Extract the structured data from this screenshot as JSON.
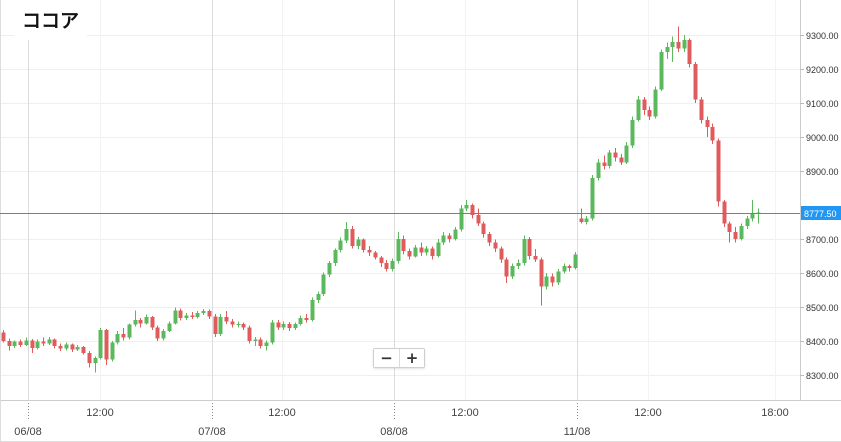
{
  "chart_data": {
    "type": "candlestick",
    "title": "ココア",
    "y_ticks": [
      "9300.00",
      "9200.00",
      "9100.00",
      "9000.00",
      "8900.00",
      "8700.00",
      "8600.00",
      "8500.00",
      "8400.00",
      "8300.00"
    ],
    "ylim": [
      8226.5,
      9403.0
    ],
    "x_time_labels": [
      "12:00",
      "12:00",
      "12:00",
      "12:00",
      "18:00"
    ],
    "x_date_labels": [
      "06/08",
      "07/08",
      "08/08",
      "11/08"
    ],
    "last_price": 8777.5,
    "last_price_label": "8777.50",
    "grid": true,
    "colors": {
      "up": "#5cb85c",
      "down": "#e05c5c",
      "last_price": "#2196f3"
    },
    "ohlc": [
      [
        8425,
        8432,
        8395,
        8400
      ],
      [
        8400,
        8408,
        8372,
        8385
      ],
      [
        8385,
        8402,
        8380,
        8398
      ],
      [
        8398,
        8405,
        8382,
        8388
      ],
      [
        8388,
        8410,
        8385,
        8402
      ],
      [
        8402,
        8406,
        8365,
        8380
      ],
      [
        8380,
        8405,
        8375,
        8398
      ],
      [
        8398,
        8410,
        8385,
        8392
      ],
      [
        8392,
        8412,
        8388,
        8405
      ],
      [
        8405,
        8408,
        8378,
        8385
      ],
      [
        8385,
        8392,
        8370,
        8378
      ],
      [
        8378,
        8395,
        8372,
        8390
      ],
      [
        8390,
        8393,
        8368,
        8375
      ],
      [
        8375,
        8388,
        8370,
        8382
      ],
      [
        8382,
        8386,
        8360,
        8365
      ],
      [
        8365,
        8370,
        8322,
        8335
      ],
      [
        8335,
        8355,
        8308,
        8350
      ],
      [
        8350,
        8438,
        8345,
        8432
      ],
      [
        8432,
        8436,
        8330,
        8345
      ],
      [
        8345,
        8400,
        8340,
        8395
      ],
      [
        8395,
        8430,
        8390,
        8420
      ],
      [
        8420,
        8438,
        8402,
        8410
      ],
      [
        8410,
        8452,
        8405,
        8448
      ],
      [
        8448,
        8490,
        8442,
        8462
      ],
      [
        8462,
        8468,
        8440,
        8452
      ],
      [
        8452,
        8478,
        8448,
        8470
      ],
      [
        8470,
        8474,
        8432,
        8440
      ],
      [
        8440,
        8445,
        8400,
        8408
      ],
      [
        8408,
        8436,
        8402,
        8430
      ],
      [
        8430,
        8458,
        8426,
        8452
      ],
      [
        8452,
        8498,
        8448,
        8490
      ],
      [
        8490,
        8495,
        8460,
        8468
      ],
      [
        8468,
        8482,
        8462,
        8475
      ],
      [
        8475,
        8485,
        8465,
        8470
      ],
      [
        8470,
        8488,
        8466,
        8482
      ],
      [
        8482,
        8494,
        8476,
        8488
      ],
      [
        8488,
        8492,
        8465,
        8472
      ],
      [
        8472,
        8480,
        8412,
        8420
      ],
      [
        8420,
        8480,
        8415,
        8470
      ],
      [
        8470,
        8488,
        8450,
        8458
      ],
      [
        8458,
        8465,
        8440,
        8448
      ],
      [
        8448,
        8458,
        8440,
        8450
      ],
      [
        8450,
        8455,
        8432,
        8440
      ],
      [
        8440,
        8445,
        8392,
        8400
      ],
      [
        8400,
        8412,
        8385,
        8405
      ],
      [
        8405,
        8410,
        8378,
        8385
      ],
      [
        8385,
        8402,
        8372,
        8395
      ],
      [
        8395,
        8462,
        8390,
        8455
      ],
      [
        8455,
        8462,
        8432,
        8440
      ],
      [
        8440,
        8458,
        8432,
        8450
      ],
      [
        8450,
        8456,
        8430,
        8438
      ],
      [
        8438,
        8455,
        8432,
        8450
      ],
      [
        8450,
        8475,
        8445,
        8468
      ],
      [
        8468,
        8480,
        8455,
        8462
      ],
      [
        8462,
        8528,
        8458,
        8520
      ],
      [
        8520,
        8545,
        8512,
        8538
      ],
      [
        8538,
        8602,
        8532,
        8595
      ],
      [
        8595,
        8636,
        8588,
        8630
      ],
      [
        8630,
        8672,
        8620,
        8668
      ],
      [
        8668,
        8705,
        8660,
        8695
      ],
      [
        8695,
        8750,
        8688,
        8730
      ],
      [
        8730,
        8738,
        8672,
        8680
      ],
      [
        8680,
        8706,
        8670,
        8698
      ],
      [
        8698,
        8702,
        8660,
        8668
      ],
      [
        8668,
        8680,
        8650,
        8660
      ],
      [
        8660,
        8665,
        8640,
        8645
      ],
      [
        8645,
        8650,
        8618,
        8630
      ],
      [
        8630,
        8638,
        8605,
        8612
      ],
      [
        8612,
        8642,
        8605,
        8635
      ],
      [
        8635,
        8720,
        8628,
        8700
      ],
      [
        8700,
        8710,
        8655,
        8665
      ],
      [
        8665,
        8672,
        8640,
        8648
      ],
      [
        8648,
        8682,
        8645,
        8675
      ],
      [
        8675,
        8690,
        8650,
        8660
      ],
      [
        8660,
        8680,
        8652,
        8672
      ],
      [
        8672,
        8678,
        8640,
        8650
      ],
      [
        8650,
        8700,
        8645,
        8690
      ],
      [
        8690,
        8720,
        8682,
        8710
      ],
      [
        8710,
        8718,
        8690,
        8700
      ],
      [
        8700,
        8735,
        8695,
        8728
      ],
      [
        8728,
        8800,
        8722,
        8790
      ],
      [
        8790,
        8815,
        8782,
        8800
      ],
      [
        8800,
        8805,
        8760,
        8770
      ],
      [
        8770,
        8790,
        8738,
        8745
      ],
      [
        8745,
        8752,
        8705,
        8715
      ],
      [
        8715,
        8720,
        8680,
        8690
      ],
      [
        8690,
        8698,
        8662,
        8672
      ],
      [
        8672,
        8678,
        8630,
        8640
      ],
      [
        8640,
        8645,
        8570,
        8590
      ],
      [
        8590,
        8628,
        8582,
        8620
      ],
      [
        8620,
        8640,
        8612,
        8630
      ],
      [
        8630,
        8710,
        8622,
        8700
      ],
      [
        8700,
        8706,
        8640,
        8650
      ],
      [
        8650,
        8670,
        8632,
        8640
      ],
      [
        8640,
        8645,
        8505,
        8560
      ],
      [
        8560,
        8600,
        8552,
        8590
      ],
      [
        8590,
        8598,
        8560,
        8572
      ],
      [
        8572,
        8612,
        8565,
        8605
      ],
      [
        8605,
        8628,
        8598,
        8620
      ],
      [
        8620,
        8625,
        8605,
        8615
      ],
      [
        8615,
        8662,
        8610,
        8655
      ],
      [
        8760,
        8790,
        8745,
        8750
      ],
      [
        8750,
        8768,
        8742,
        8760
      ],
      [
        8760,
        8888,
        8755,
        8880
      ],
      [
        8880,
        8935,
        8872,
        8925
      ],
      [
        8925,
        8945,
        8905,
        8915
      ],
      [
        8915,
        8962,
        8908,
        8955
      ],
      [
        8955,
        8968,
        8928,
        8940
      ],
      [
        8940,
        8950,
        8918,
        8925
      ],
      [
        8925,
        8985,
        8920,
        8975
      ],
      [
        8975,
        9060,
        8968,
        9050
      ],
      [
        9050,
        9120,
        9045,
        9110
      ],
      [
        9110,
        9118,
        9065,
        9080
      ],
      [
        9080,
        9090,
        9050,
        9060
      ],
      [
        9060,
        9148,
        9055,
        9140
      ],
      [
        9140,
        9258,
        9135,
        9250
      ],
      [
        9250,
        9278,
        9230,
        9265
      ],
      [
        9265,
        9295,
        9220,
        9280
      ],
      [
        9280,
        9325,
        9250,
        9260
      ],
      [
        9260,
        9300,
        9250,
        9285
      ],
      [
        9285,
        9290,
        9205,
        9215
      ],
      [
        9215,
        9220,
        9100,
        9110
      ],
      [
        9110,
        9118,
        9040,
        9050
      ],
      [
        9050,
        9060,
        9000,
        9030
      ],
      [
        9030,
        9040,
        8980,
        8990
      ],
      [
        8990,
        8995,
        8795,
        8810
      ],
      [
        8810,
        8815,
        8735,
        8745
      ],
      [
        8745,
        8752,
        8690,
        8720
      ],
      [
        8720,
        8735,
        8690,
        8700
      ],
      [
        8700,
        8745,
        8695,
        8738
      ],
      [
        8738,
        8768,
        8730,
        8760
      ],
      [
        8760,
        8815,
        8752,
        8775
      ],
      [
        8775,
        8790,
        8745,
        8777.5
      ]
    ]
  },
  "controls": {
    "zoom_out_label": "−",
    "zoom_in_label": "+"
  }
}
